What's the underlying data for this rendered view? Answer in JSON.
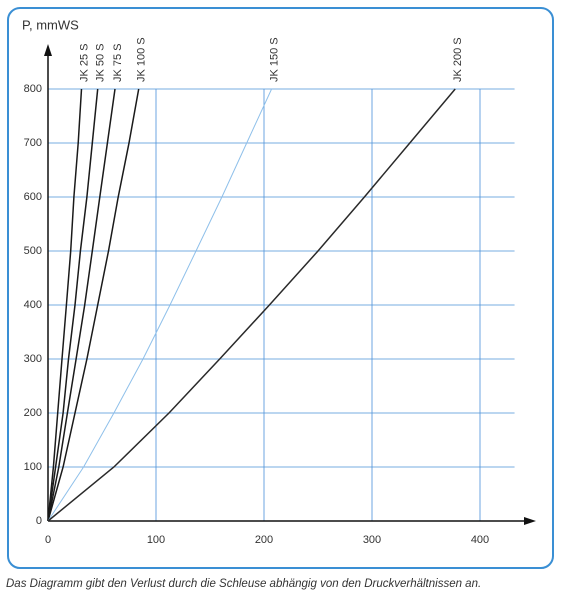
{
  "chart_data": {
    "type": "line",
    "ylabel": "P, mmWS",
    "caption": "Das Diagramm gibt den Verlust durch die Schleuse abhängig von den Druckverhältnissen an.",
    "xlim": [
      0,
      432
    ],
    "ylim": [
      0,
      800
    ],
    "xticks": [
      0,
      100,
      200,
      300,
      400
    ],
    "yticks": [
      0,
      100,
      200,
      300,
      400,
      500,
      600,
      700,
      800
    ],
    "grid": true,
    "grid_color": "#4a90d9",
    "series": [
      {
        "name": "JK 25 S",
        "color": "#1a1a1a",
        "x": [
          0,
          5,
          9,
          13,
          17,
          21,
          24,
          28,
          31
        ],
        "values": [
          0,
          100,
          200,
          300,
          400,
          500,
          600,
          700,
          800
        ]
      },
      {
        "name": "JK 50 S",
        "color": "#1a1a1a",
        "x": [
          0,
          7,
          14,
          19,
          25,
          30,
          36,
          41,
          46
        ],
        "values": [
          0,
          100,
          200,
          300,
          400,
          500,
          600,
          700,
          800
        ]
      },
      {
        "name": "JK 75 S",
        "color": "#1a1a1a",
        "x": [
          0,
          10,
          18,
          26,
          34,
          41,
          48,
          55,
          62
        ],
        "values": [
          0,
          100,
          200,
          300,
          400,
          500,
          600,
          700,
          800
        ]
      },
      {
        "name": "JK 100 S",
        "color": "#1a1a1a",
        "x": [
          0,
          14,
          25,
          36,
          46,
          56,
          65,
          75,
          84
        ],
        "values": [
          0,
          100,
          200,
          300,
          400,
          500,
          600,
          700,
          800
        ]
      },
      {
        "name": "JK 150 S",
        "color": "#8fc0ea",
        "x": [
          0,
          33,
          61,
          88,
          113,
          137,
          161,
          184,
          207
        ],
        "values": [
          0,
          100,
          200,
          300,
          400,
          500,
          600,
          700,
          800
        ]
      },
      {
        "name": "JK 200 S",
        "color": "#2a2a2a",
        "x": [
          0,
          61,
          112,
          159,
          205,
          250,
          293,
          335,
          377
        ],
        "values": [
          0,
          100,
          200,
          300,
          400,
          500,
          600,
          700,
          800
        ]
      }
    ]
  }
}
